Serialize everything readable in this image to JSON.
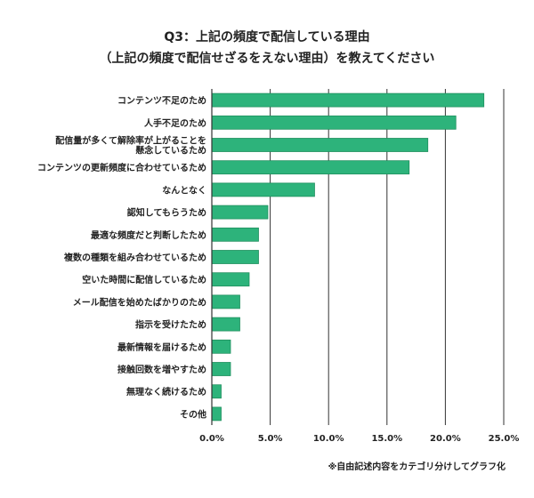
{
  "title_line1": "Q3：上記の頻度で配信している理由",
  "title_line2": "（上記の頻度で配信せざるをえない理由）を教えてください",
  "note": "※自由記述内容をカテゴリ分けしてグラフ化",
  "chart_data": {
    "type": "bar",
    "orientation": "horizontal",
    "bar_color": "#2db37b",
    "grid": true,
    "xlim": [
      0,
      25
    ],
    "x_ticks": [
      "0.0%",
      "5.0%",
      "10.0%",
      "15.0%",
      "20.0%",
      "25.0%"
    ],
    "categories": [
      [
        "コンテンツ不足のため"
      ],
      [
        "人手不足のため"
      ],
      [
        "配信量が多くて解除率が上がることを",
        "懸念しているため"
      ],
      [
        "コンテンツの更新頻度に合わせているため"
      ],
      [
        "なんとなく"
      ],
      [
        "認知してもらうため"
      ],
      [
        "最適な頻度だと判断したため"
      ],
      [
        "複数の種類を組み合わせているため"
      ],
      [
        "空いた時間に配信しているため"
      ],
      [
        "メール配信を始めたばかりのため"
      ],
      [
        "指示を受けたため"
      ],
      [
        "最新情報を届けるため"
      ],
      [
        "接触回数を増やすため"
      ],
      [
        "無理なく続けるため"
      ],
      [
        "その他"
      ]
    ],
    "values": [
      23.3,
      20.9,
      18.5,
      16.9,
      8.8,
      4.8,
      4.0,
      4.0,
      3.2,
      2.4,
      2.4,
      1.6,
      1.6,
      0.8,
      0.8
    ]
  }
}
